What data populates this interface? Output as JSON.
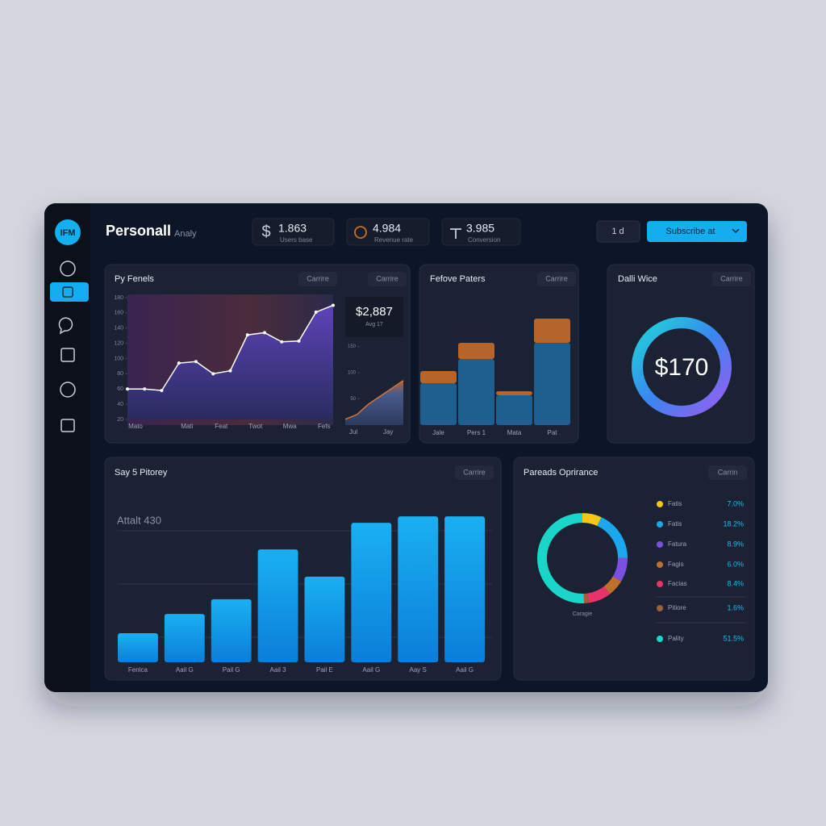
{
  "sidebar": {
    "logo": "IFM"
  },
  "header": {
    "title": "Personall",
    "subtitle": "Analy",
    "stats": [
      {
        "value": "1.863",
        "label": "Users base"
      },
      {
        "value": "4.984",
        "label": "Revenue rate"
      },
      {
        "value": "3.985",
        "label": "Conversion"
      }
    ],
    "range": "1 d",
    "button": "Subscribe at"
  },
  "trend_panel": {
    "title": "Py Fenels",
    "tags": [
      "Carrire",
      "Carrire"
    ],
    "chart": {
      "type": "line",
      "categories": [
        "Mato",
        null,
        null,
        "Mati",
        null,
        "Feat",
        null,
        "Twot",
        null,
        "Mwa",
        null,
        "Fefs",
        null
      ],
      "values": [
        60,
        60,
        58,
        94,
        96,
        80,
        84,
        131,
        134,
        122,
        123,
        161,
        170
      ],
      "ylim": [
        20,
        180
      ],
      "yticks": [
        20,
        40,
        60,
        80,
        100,
        120,
        140,
        160,
        180
      ]
    },
    "summary": {
      "value": "$2,887",
      "label": "Avg 17"
    },
    "mini_chart": {
      "type": "area",
      "categories": [
        "Jul",
        null,
        null,
        "Jay",
        null,
        null
      ],
      "values": [
        11,
        20,
        40,
        55,
        70,
        85
      ],
      "ylim": [
        0,
        180
      ],
      "yticks": [
        50,
        100,
        150
      ]
    }
  },
  "pattern_panel": {
    "title": "Fefove Paters",
    "tag": "Carrire",
    "chart": {
      "type": "stacked_bar",
      "categories": [
        "Jale",
        "Pers 1",
        "Mata",
        "Pat"
      ],
      "series": [
        {
          "color": "#1f5f8f",
          "values": [
            52,
            82,
            37,
            102
          ]
        },
        {
          "color": "#b5652c",
          "values": [
            15,
            20,
            5,
            30
          ]
        }
      ],
      "ylim": [
        0,
        140
      ]
    }
  },
  "wallet_panel": {
    "title": "Dalli Wice",
    "tag": "Carrire",
    "amount": "$170"
  },
  "history_panel": {
    "title": "Say 5 Pitorey",
    "tag": "Carrire",
    "chart": {
      "type": "bar",
      "annotation": "Attalt 430",
      "categories": [
        "Fenlca",
        "Aail G",
        "Pail G",
        "Aail 3",
        "Pail E",
        "Aail G",
        "Aay S",
        "Aail G"
      ],
      "values": [
        95,
        158,
        206,
        369,
        280,
        456,
        477,
        477
      ],
      "ylim": [
        0,
        480
      ],
      "color": "#14a3ea"
    }
  },
  "performance_panel": {
    "title": "Pareads Oprirance",
    "tag": "Carrin",
    "chart": {
      "type": "donut",
      "caption": "Caragie",
      "categories": [
        "Fatis",
        "Fatis",
        "Fatura",
        "Fagis",
        "Facias",
        "Pitiore",
        "Pality"
      ],
      "values": [
        7,
        18.2,
        8.9,
        6,
        8.4,
        1.6,
        51.5
      ],
      "value_labels": [
        "7.0%",
        "18.2%",
        "8.9%",
        "6.0%",
        "8.4%",
        "1.6%",
        "51.5%"
      ],
      "colors": [
        "#f5c518",
        "#1aa7ec",
        "#7b4fe0",
        "#c0702d",
        "#e8336b",
        "#a0612f",
        "#1ad6c8"
      ]
    }
  }
}
